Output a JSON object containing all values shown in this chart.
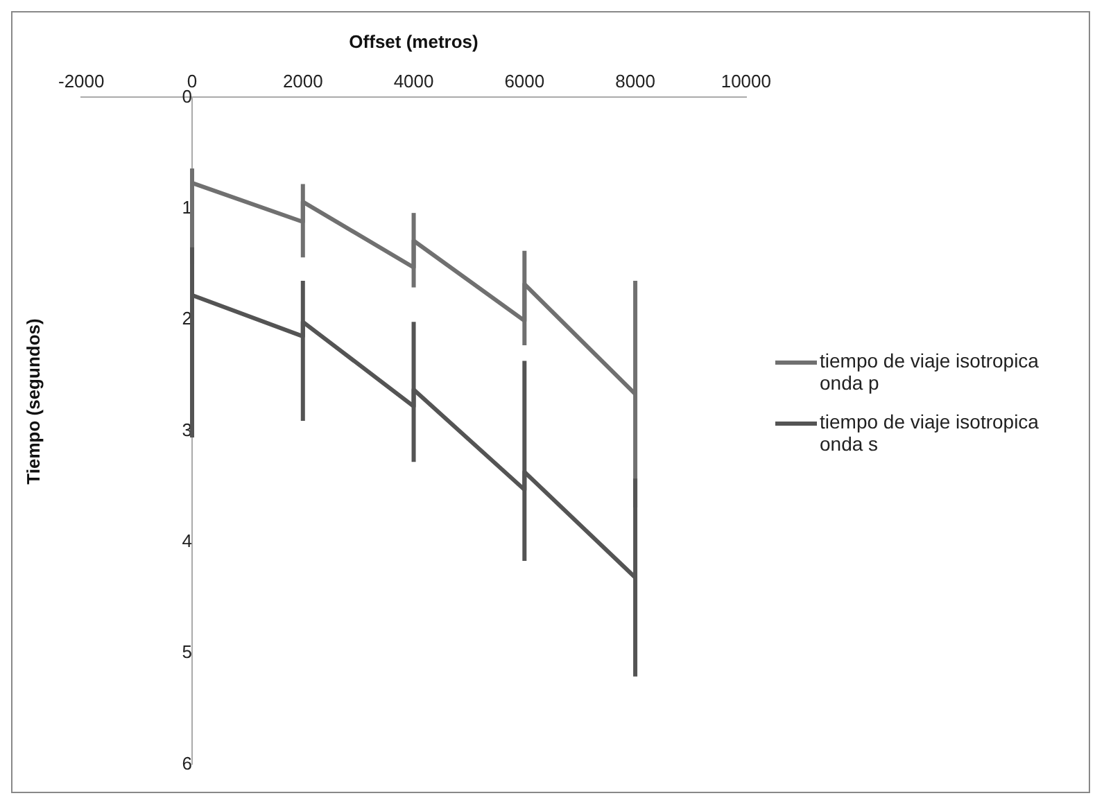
{
  "chart_data": {
    "type": "line",
    "xlabel": "Offset (metros)",
    "ylabel": "Tiempo (segundos)",
    "xlim": [
      -2000,
      10000
    ],
    "xticks": [
      -2000,
      0,
      2000,
      4000,
      6000,
      8000,
      10000
    ],
    "ylim": [
      6,
      0
    ],
    "yticks": [
      0,
      1,
      2,
      3,
      4,
      5,
      6
    ],
    "grid": false,
    "legend": "right",
    "marker": "none",
    "line_style": "solid",
    "series": [
      {
        "name": "tiempo de viaje isotropica onda p",
        "color": "#707070",
        "x": [
          0,
          2000,
          2000,
          4000,
          4000,
          6000,
          6000,
          8000
        ],
        "values": [
          0.77,
          1.12,
          0.94,
          1.53,
          1.29,
          2.01,
          1.68,
          2.67
        ],
        "errors": [
          [
            0.64,
            1.5
          ],
          [
            0.78,
            1.44
          ],
          null,
          [
            1.04,
            1.71
          ],
          null,
          [
            1.38,
            2.23
          ],
          null,
          [
            1.65,
            3.69
          ]
        ]
      },
      {
        "name": "tiempo de viaje isotropica onda s",
        "color": "#545454",
        "x": [
          0,
          2000,
          2000,
          4000,
          4000,
          6000,
          6000,
          8000
        ],
        "values": [
          1.78,
          2.15,
          2.02,
          2.78,
          2.63,
          3.53,
          3.37,
          4.32
        ],
        "errors": [
          [
            1.35,
            3.06
          ],
          [
            1.65,
            2.91
          ],
          null,
          [
            2.02,
            3.28
          ],
          null,
          [
            2.37,
            4.17
          ],
          null,
          [
            3.43,
            5.21
          ]
        ]
      }
    ]
  }
}
